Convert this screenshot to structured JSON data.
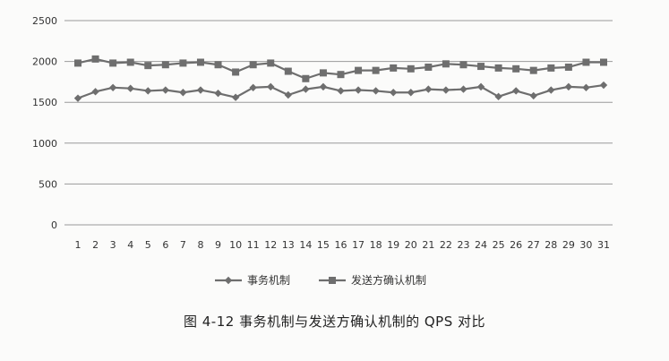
{
  "caption": "图 4-12   事务机制与发送方确认机制的 QPS 对比",
  "chart_data": {
    "type": "line",
    "title": "",
    "xlabel": "",
    "ylabel": "",
    "categories": [
      "1",
      "2",
      "3",
      "4",
      "5",
      "6",
      "7",
      "8",
      "9",
      "10",
      "11",
      "12",
      "13",
      "14",
      "15",
      "16",
      "17",
      "18",
      "19",
      "20",
      "21",
      "22",
      "23",
      "24",
      "25",
      "26",
      "27",
      "28",
      "29",
      "30",
      "31"
    ],
    "ylim": [
      0,
      2500
    ],
    "yticks": [
      0,
      500,
      1000,
      1500,
      2000,
      2500
    ],
    "grid": true,
    "legend_position": "bottom",
    "series": [
      {
        "name": "事务机制",
        "marker": "diamond",
        "color": "#6e6e6e",
        "values": [
          1550,
          1630,
          1680,
          1670,
          1640,
          1650,
          1620,
          1650,
          1610,
          1560,
          1680,
          1690,
          1590,
          1660,
          1690,
          1640,
          1650,
          1640,
          1620,
          1620,
          1660,
          1650,
          1660,
          1690,
          1570,
          1640,
          1580,
          1650,
          1690,
          1680,
          1710
        ]
      },
      {
        "name": "发送方确认机制",
        "marker": "square",
        "color": "#6e6e6e",
        "values": [
          1980,
          2030,
          1980,
          1990,
          1950,
          1960,
          1980,
          1990,
          1960,
          1870,
          1960,
          1980,
          1880,
          1790,
          1860,
          1840,
          1890,
          1890,
          1920,
          1910,
          1930,
          1970,
          1960,
          1940,
          1920,
          1910,
          1890,
          1920,
          1930,
          1990,
          1990
        ]
      }
    ]
  }
}
